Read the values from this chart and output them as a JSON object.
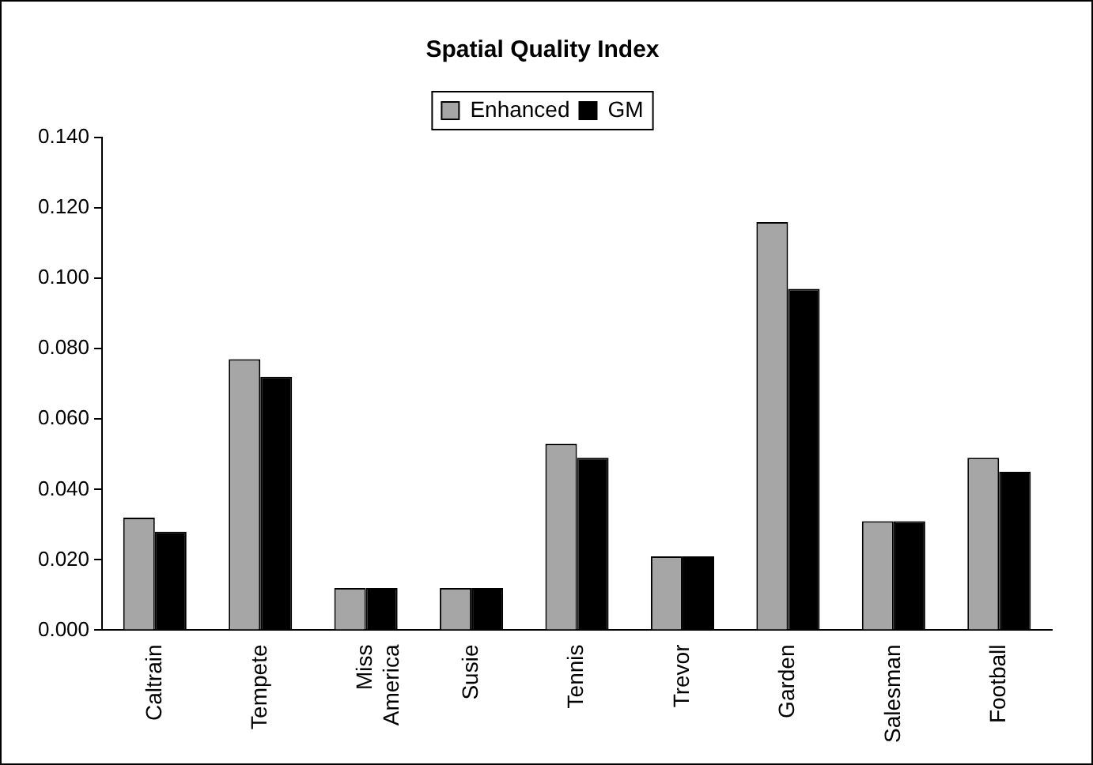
{
  "chart_data": {
    "type": "bar",
    "title": "Spatial Quality Index",
    "categories": [
      "Caltrain",
      "Tempete",
      "Miss America",
      "Susie",
      "Tennis",
      "Trevor",
      "Garden",
      "Salesman",
      "Football"
    ],
    "series": [
      {
        "name": "Enhanced",
        "color": "#a6a6a6",
        "values": [
          0.032,
          0.077,
          0.012,
          0.012,
          0.053,
          0.021,
          0.116,
          0.031,
          0.049
        ]
      },
      {
        "name": "GM",
        "color": "#000000",
        "values": [
          0.028,
          0.072,
          0.012,
          0.012,
          0.049,
          0.021,
          0.097,
          0.031,
          0.045
        ]
      }
    ],
    "ylim": [
      0,
      0.14
    ],
    "yticks": [
      {
        "value": 0,
        "label": "0.000"
      },
      {
        "value": 0.02,
        "label": "0.020"
      },
      {
        "value": 0.04,
        "label": "0.040"
      },
      {
        "value": 0.06,
        "label": "0.060"
      },
      {
        "value": 0.08,
        "label": "0.080"
      },
      {
        "value": 0.1,
        "label": "0.100"
      },
      {
        "value": 0.12,
        "label": "0.120"
      },
      {
        "value": 0.14,
        "label": "0.140"
      }
    ],
    "grid": false,
    "legend": "top"
  }
}
